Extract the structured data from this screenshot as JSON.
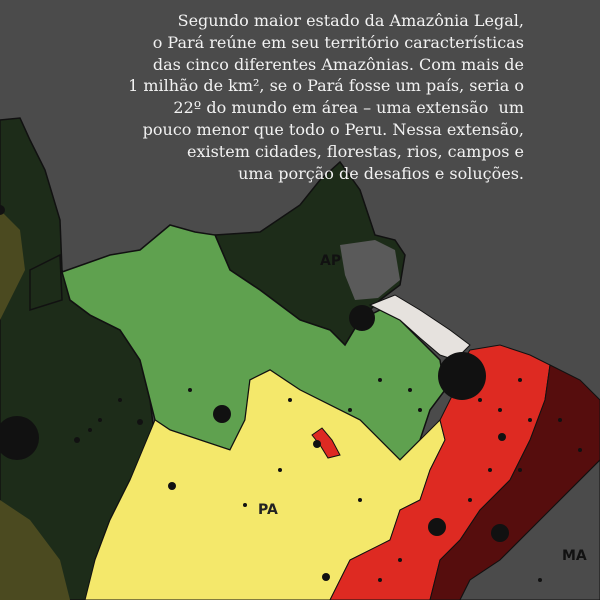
{
  "intro_text": [
    "Segundo maior estado da Amazônia Legal,",
    "o Pará reúne em seu território características",
    "das cinco diferentes Amazônias. Com mais de",
    "1 milhão de km², se o Pará fosse um país, seria o",
    "22º do mundo em área – uma extensão  um",
    "pouco menor que todo o Peru. Nessa extensão,",
    "existem cidades, florestas, rios, campos e",
    "uma porção de desafios e soluções."
  ],
  "map": {
    "labels": {
      "ap": "AP",
      "pa": "PA",
      "ma": "MA"
    },
    "colors": {
      "background": "#4b4b4b",
      "dark_forest": "#1d2c19",
      "green": "#5fa14f",
      "yellow": "#f4e86b",
      "red": "#de2a22",
      "dark_red": "#560d0d",
      "light_gray": "#e6e2de",
      "olive": "#4b4a20",
      "cities": "#111111"
    }
  }
}
